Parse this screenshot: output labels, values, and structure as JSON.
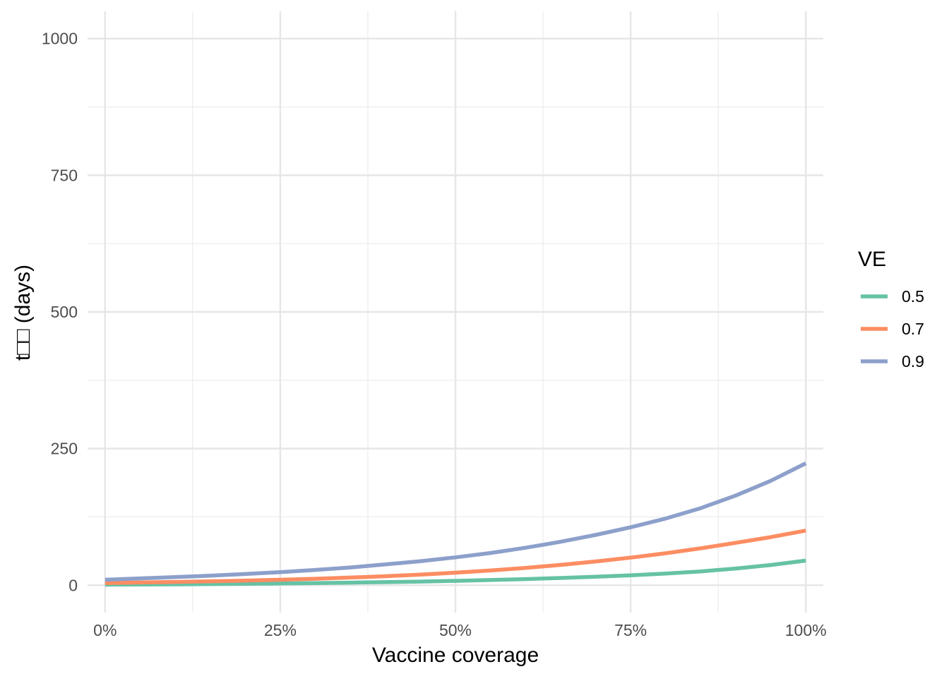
{
  "chart_data": {
    "type": "line",
    "xlabel": "Vaccine coverage",
    "ylabel": "t□□ (days)",
    "x_ticks": [
      0,
      0.25,
      0.5,
      0.75,
      1.0
    ],
    "x_tick_labels": [
      "0%",
      "25%",
      "50%",
      "75%",
      "100%"
    ],
    "x_minor": [
      0.125,
      0.375,
      0.625,
      0.875
    ],
    "xlim": [
      -0.025,
      1.025
    ],
    "y_ticks": [
      0,
      250,
      500,
      750,
      1000
    ],
    "y_tick_labels": [
      "0",
      "250",
      "500",
      "750",
      "1000"
    ],
    "y_minor": [
      125,
      375,
      625,
      875
    ],
    "ylim": [
      -50,
      1050
    ],
    "grid": true,
    "legend": {
      "title": "VE",
      "position": "right"
    },
    "x": [
      0,
      0.05,
      0.1,
      0.15,
      0.2,
      0.25,
      0.3,
      0.35,
      0.4,
      0.45,
      0.5,
      0.55,
      0.6,
      0.65,
      0.7,
      0.75,
      0.8,
      0.85,
      0.9,
      0.95,
      1.0
    ],
    "series": [
      {
        "name": "0.5",
        "color": "#66c2a5",
        "values": [
          1,
          1.3,
          1.7,
          2.1,
          2.6,
          3.2,
          3.9,
          4.7,
          5.6,
          6.7,
          8,
          9.5,
          11.2,
          13.2,
          15.5,
          18.2,
          21.4,
          25.3,
          30.5,
          37,
          45
        ]
      },
      {
        "name": "0.7",
        "color": "#fc8d62",
        "values": [
          4,
          5,
          6,
          7.2,
          8.5,
          10,
          11.8,
          14,
          16.5,
          19.5,
          23,
          27,
          31.7,
          37.2,
          43.5,
          50.5,
          58.5,
          67.5,
          77.5,
          88,
          100
        ]
      },
      {
        "name": "0.9",
        "color": "#8da0cb",
        "values": [
          10,
          12.5,
          15,
          17.5,
          20.5,
          24,
          28,
          32.5,
          38,
          44,
          51,
          59,
          68.5,
          79.5,
          92,
          106,
          122,
          141,
          164,
          191,
          223
        ]
      }
    ]
  }
}
